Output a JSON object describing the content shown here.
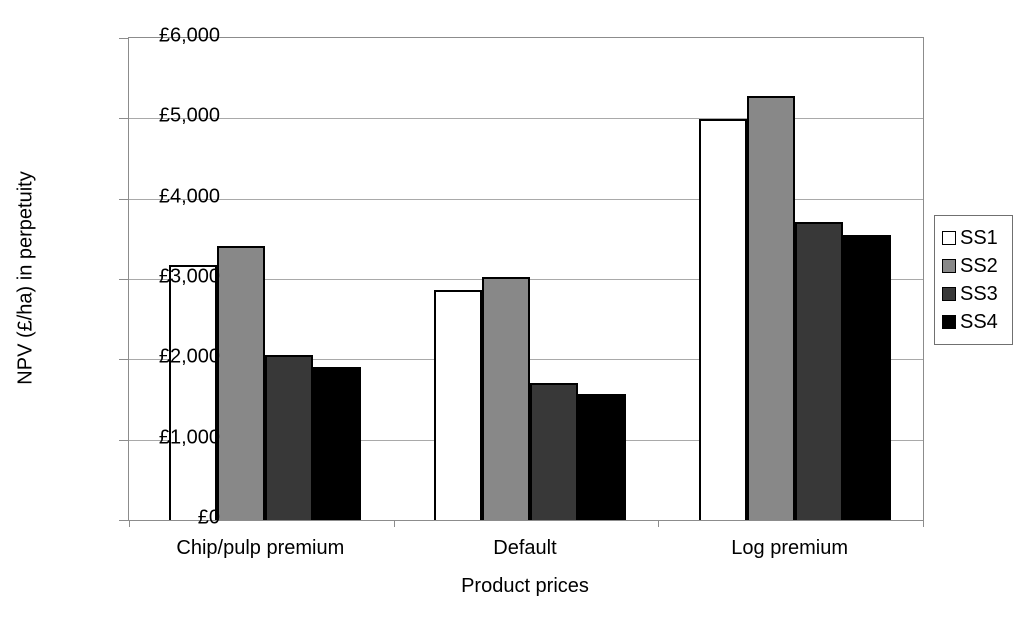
{
  "chart_data": {
    "type": "bar",
    "title": "",
    "xlabel": "Product prices",
    "ylabel": "NPV (£/ha) in perpetuity",
    "categories": [
      "Chip/pulp premium",
      "Default",
      "Log premium"
    ],
    "series": [
      {
        "name": "SS1",
        "color": "#ffffff",
        "values": [
          3170,
          2860,
          4990
        ]
      },
      {
        "name": "SS2",
        "color": "#888888",
        "values": [
          3410,
          3030,
          5280
        ]
      },
      {
        "name": "SS3",
        "color": "#383838",
        "values": [
          2050,
          1710,
          3710
        ]
      },
      {
        "name": "SS4",
        "color": "#000000",
        "values": [
          1910,
          1570,
          3550
        ]
      }
    ],
    "ylim": [
      0,
      6000
    ],
    "y_ticks": [
      {
        "value": 0,
        "label": "£0"
      },
      {
        "value": 1000,
        "label": "£1,000"
      },
      {
        "value": 2000,
        "label": "£2,000"
      },
      {
        "value": 3000,
        "label": "£3,000"
      },
      {
        "value": 4000,
        "label": "£4,000"
      },
      {
        "value": 5000,
        "label": "£5,000"
      },
      {
        "value": 6000,
        "label": "£6,000"
      }
    ],
    "grid": "horizontal",
    "legend_position": "right",
    "bar_outline_color": "#000000",
    "gridline_color": "#a9a9a9",
    "axis_color": "#8c8c8c"
  }
}
